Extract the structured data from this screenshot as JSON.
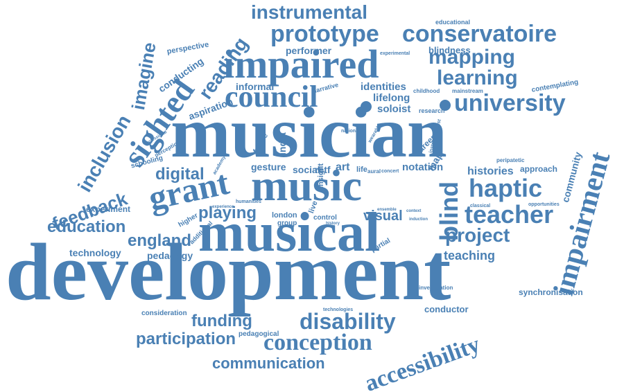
{
  "word_cloud": {
    "color": "#4a80b4",
    "words": [
      {
        "id": "development",
        "text": "development"
      },
      {
        "id": "musician",
        "text": "musician"
      },
      {
        "id": "musical",
        "text": "musical"
      },
      {
        "id": "music",
        "text": "music"
      },
      {
        "id": "impaired",
        "text": "impaired"
      },
      {
        "id": "council",
        "text": "council"
      },
      {
        "id": "grant",
        "text": "grant"
      },
      {
        "id": "sighted",
        "text": "sighted"
      },
      {
        "id": "university",
        "text": "university"
      },
      {
        "id": "impairment",
        "text": "impairment"
      },
      {
        "id": "accessibility",
        "text": "accessibility"
      },
      {
        "id": "conception",
        "text": "conception"
      },
      {
        "id": "disability",
        "text": "disability"
      },
      {
        "id": "prototype",
        "text": "prototype"
      },
      {
        "id": "conservatoire",
        "text": "conservatoire"
      },
      {
        "id": "instrumental",
        "text": "instrumental"
      },
      {
        "id": "mapping",
        "text": "mapping"
      },
      {
        "id": "learning",
        "text": "learning"
      },
      {
        "id": "haptic",
        "text": "haptic"
      },
      {
        "id": "teacher",
        "text": "teacher"
      },
      {
        "id": "project",
        "text": "project"
      },
      {
        "id": "blind",
        "text": "blind"
      },
      {
        "id": "inclusion",
        "text": "inclusion"
      },
      {
        "id": "imagine",
        "text": "imagine"
      },
      {
        "id": "reading",
        "text": "reading"
      },
      {
        "id": "feedback",
        "text": "feedback"
      },
      {
        "id": "digital",
        "text": "digital"
      },
      {
        "id": "education",
        "text": "education"
      },
      {
        "id": "england",
        "text": "england"
      },
      {
        "id": "playing",
        "text": "playing"
      },
      {
        "id": "funding",
        "text": "funding"
      },
      {
        "id": "participation",
        "text": "participation"
      },
      {
        "id": "communication",
        "text": "communication"
      },
      {
        "id": "visual",
        "text": "visual"
      },
      {
        "id": "teaching",
        "text": "teaching"
      },
      {
        "id": "histories",
        "text": "histories"
      },
      {
        "id": "notation",
        "text": "notation"
      },
      {
        "id": "identities",
        "text": "identities"
      },
      {
        "id": "lifelong",
        "text": "lifelong"
      },
      {
        "id": "soloist",
        "text": "soloist"
      },
      {
        "id": "informal",
        "text": "informal"
      },
      {
        "id": "performer",
        "text": "performer"
      },
      {
        "id": "blindness",
        "text": "blindness"
      },
      {
        "id": "conducting",
        "text": "conducting"
      },
      {
        "id": "aspiration",
        "text": "aspiration"
      },
      {
        "id": "community",
        "text": "community"
      },
      {
        "id": "synchronisation",
        "text": "synchronisation"
      },
      {
        "id": "conductor",
        "text": "conductor"
      },
      {
        "id": "technology",
        "text": "technology"
      },
      {
        "id": "pedagogy",
        "text": "pedagogy"
      },
      {
        "id": "experiment",
        "text": "experiment"
      },
      {
        "id": "gesture",
        "text": "gesture"
      },
      {
        "id": "social",
        "text": "social"
      },
      {
        "id": "retf",
        "text": "retf"
      },
      {
        "id": "art",
        "text": "art"
      },
      {
        "id": "india",
        "text": "india"
      },
      {
        "id": "approach",
        "text": "approach"
      },
      {
        "id": "perspective",
        "text": "perspective"
      },
      {
        "id": "educational",
        "text": "educational"
      },
      {
        "id": "contemplating",
        "text": "contemplating"
      },
      {
        "id": "schooling",
        "text": "schooling"
      },
      {
        "id": "consideration",
        "text": "consideration"
      },
      {
        "id": "pedagogical",
        "text": "pedagogical"
      },
      {
        "id": "research",
        "text": "research"
      },
      {
        "id": "mainstream",
        "text": "mainstream"
      },
      {
        "id": "childhood",
        "text": "childhood"
      },
      {
        "id": "experimental",
        "text": "experimental"
      },
      {
        "id": "career",
        "text": "career"
      },
      {
        "id": "map",
        "text": "map"
      },
      {
        "id": "london",
        "text": "london"
      },
      {
        "id": "group",
        "text": "group"
      },
      {
        "id": "control",
        "text": "control"
      },
      {
        "id": "partial",
        "text": "partial"
      },
      {
        "id": "higher",
        "text": "higher"
      },
      {
        "id": "additional",
        "text": "additional"
      },
      {
        "id": "investigation",
        "text": "investigation"
      },
      {
        "id": "technologies",
        "text": "technologies"
      },
      {
        "id": "narrative",
        "text": "narrative"
      },
      {
        "id": "peripatetic",
        "text": "peripatetic"
      },
      {
        "id": "classical",
        "text": "classical"
      },
      {
        "id": "opportunities",
        "text": "opportunities"
      },
      {
        "id": "future",
        "text": "future"
      },
      {
        "id": "live",
        "text": "live"
      },
      {
        "id": "insight",
        "text": "insight"
      },
      {
        "id": "life",
        "text": "life"
      },
      {
        "id": "aural",
        "text": "aural"
      },
      {
        "id": "concert",
        "text": "concert"
      },
      {
        "id": "humanities",
        "text": "humanities"
      },
      {
        "id": "experience",
        "text": "experience"
      },
      {
        "id": "academy",
        "text": "academy"
      },
      {
        "id": "professional",
        "text": "professional"
      },
      {
        "id": "perception",
        "text": "perception"
      },
      {
        "id": "national",
        "text": "national"
      },
      {
        "id": "instrumentalist",
        "text": "instrumentalist"
      },
      {
        "id": "wearable",
        "text": "wearable"
      },
      {
        "id": "history",
        "text": "history"
      },
      {
        "id": "ensemble",
        "text": "ensemble"
      },
      {
        "id": "context",
        "text": "context"
      },
      {
        "id": "induction",
        "text": "induction"
      }
    ]
  }
}
